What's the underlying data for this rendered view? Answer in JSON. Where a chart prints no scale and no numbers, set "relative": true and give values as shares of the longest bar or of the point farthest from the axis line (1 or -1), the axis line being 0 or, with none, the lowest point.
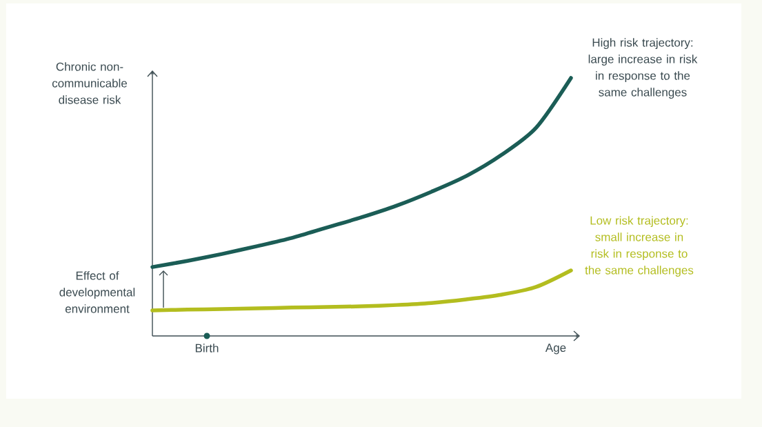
{
  "chart_data": {
    "type": "line",
    "relative": true,
    "ylabel": "Chronic non-communicable disease risk",
    "xlabel": "Age",
    "categories": [
      null,
      null,
      null,
      null,
      null,
      null,
      null,
      null,
      null,
      null,
      null,
      null,
      null
    ],
    "series": [
      {
        "name": "High risk trajectory: large increase in risk in response to the same challenges",
        "color": "#1b5d56",
        "values": [
          0.267,
          0.291,
          0.318,
          0.348,
          0.38,
          0.42,
          0.46,
          0.505,
          0.559,
          0.62,
          0.701,
          0.807,
          1
        ]
      },
      {
        "name": "Low risk trajectory: small increase in risk in response to the same challenges",
        "color": "#b3bd1f",
        "values": [
          0.099,
          0.102,
          0.104,
          0.107,
          0.11,
          0.112,
          0.115,
          0.12,
          0.128,
          0.142,
          0.16,
          0.19,
          0.254
        ]
      }
    ],
    "annotations": [
      "Effect of developmental environment",
      "Birth"
    ]
  }
}
